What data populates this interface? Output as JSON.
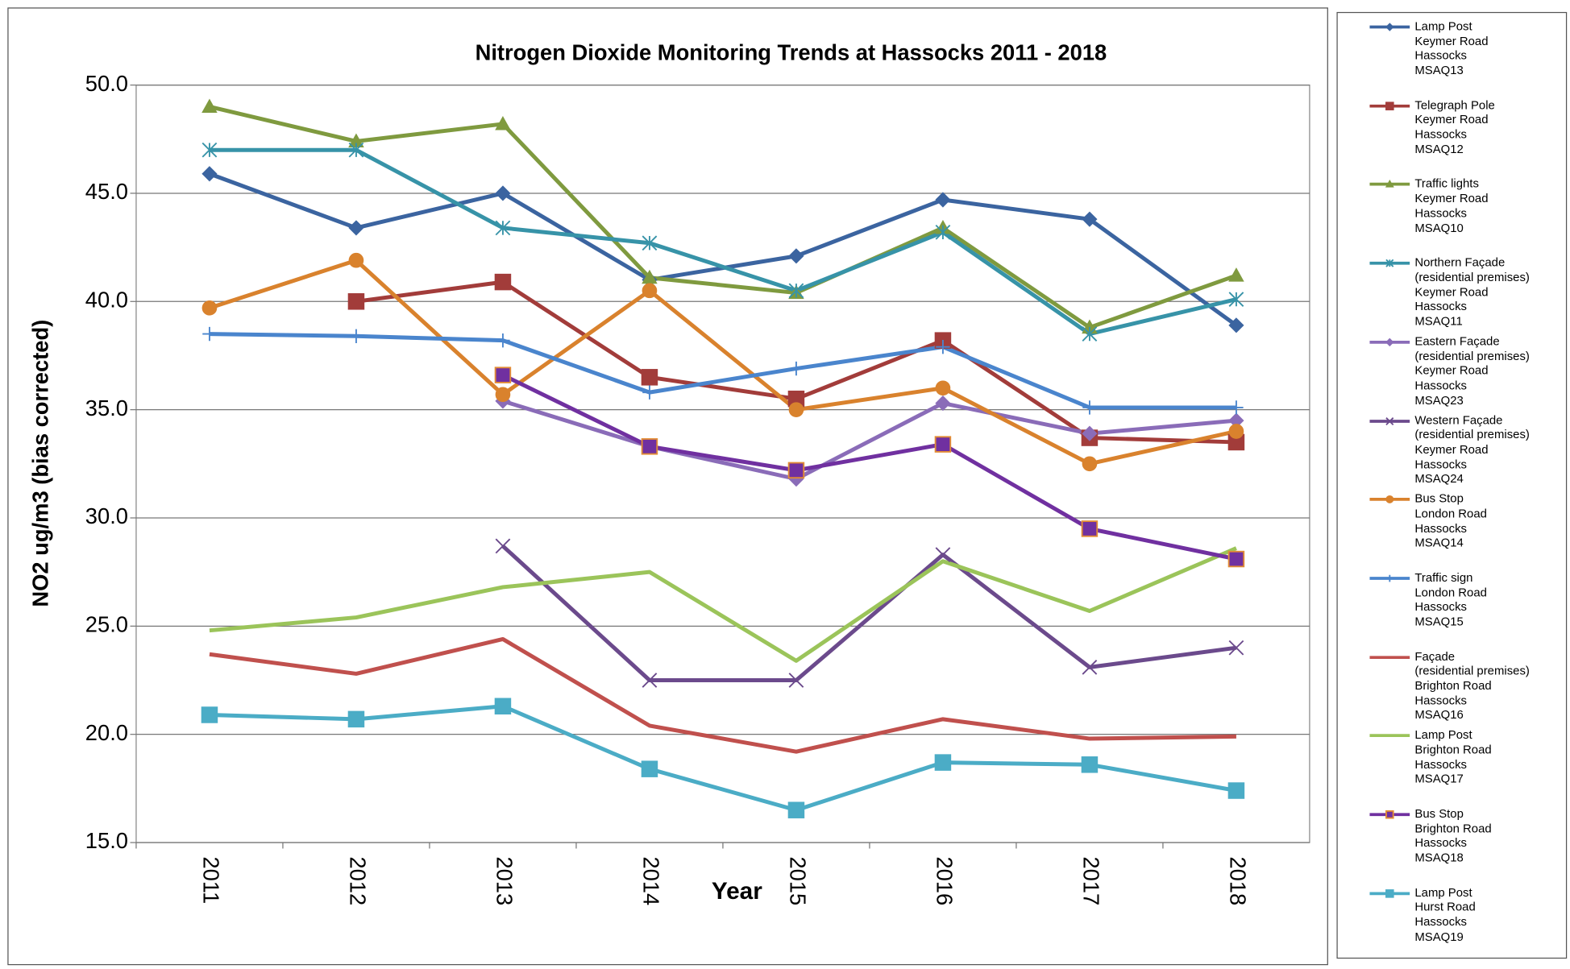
{
  "chart_data": {
    "type": "line",
    "title": "Nitrogen Dioxide Monitoring Trends at Hassocks  2011 - 2018",
    "xlabel": "Year",
    "ylabel": "NO2 ug/m3 (bias corrected)",
    "categories": [
      "2011",
      "2012",
      "2013",
      "2014",
      "2015",
      "2016",
      "2017",
      "2018"
    ],
    "ylim": [
      15,
      50
    ],
    "yticks": [
      {
        "value": 15,
        "label": "15.0"
      },
      {
        "value": 20,
        "label": "20.0"
      },
      {
        "value": 25,
        "label": "25.0"
      },
      {
        "value": 30,
        "label": "30.0"
      },
      {
        "value": 35,
        "label": "35.0"
      },
      {
        "value": 40,
        "label": "40.0"
      },
      {
        "value": 45,
        "label": "45.0"
      },
      {
        "value": 50,
        "label": "50.0"
      }
    ],
    "grid": true,
    "legend": "right",
    "series": [
      {
        "name": "Lamp Post\nKeymer Road\nHassocks\nMSAQ13",
        "color": "#3b64a0",
        "marker": "diamond",
        "values": [
          45.9,
          43.4,
          45.0,
          41.0,
          42.1,
          44.7,
          43.8,
          38.9
        ]
      },
      {
        "name": "Telegraph Pole\nKeymer Road\nHassocks\nMSAQ12",
        "color": "#a23c3a",
        "marker": "square",
        "values": [
          null,
          40.0,
          40.9,
          36.5,
          35.5,
          38.2,
          33.7,
          33.5
        ]
      },
      {
        "name": "Traffic lights\nKeymer Road\nHassocks\nMSAQ10",
        "color": "#7f9a3f",
        "marker": "triangle",
        "values": [
          49.0,
          47.4,
          48.2,
          41.1,
          40.4,
          43.4,
          38.8,
          41.2
        ]
      },
      {
        "name": "Northern Façade\n(residential premises)\nKeymer Road\nHassocks\nMSAQ11",
        "color": "#3793a8",
        "marker": "asterisk",
        "values": [
          47.0,
          47.0,
          43.4,
          42.7,
          40.5,
          43.2,
          38.5,
          40.1
        ]
      },
      {
        "name": "Eastern Façade\n(residential premises)\nKeymer Road\nHassocks\nMSAQ23",
        "color": "#8a6cb8",
        "marker": "diamond",
        "values": [
          null,
          null,
          35.4,
          33.3,
          31.8,
          35.3,
          33.9,
          34.5
        ]
      },
      {
        "name": "Western Façade\n(residential premises)\nKeymer Road\nHassocks\nMSAQ24",
        "color": "#6b4a8c",
        "marker": "x",
        "values": [
          null,
          null,
          28.7,
          22.5,
          22.5,
          28.3,
          23.1,
          24.0
        ]
      },
      {
        "name": "Bus Stop\nLondon Road\nHassocks\nMSAQ14",
        "color": "#d9822d",
        "marker": "circle",
        "values": [
          39.7,
          41.9,
          35.7,
          40.5,
          35.0,
          36.0,
          32.5,
          34.0
        ]
      },
      {
        "name": "Traffic sign\nLondon Road\nHassocks\nMSAQ15",
        "color": "#4a85cd",
        "marker": "plus",
        "values": [
          38.5,
          38.4,
          38.2,
          35.8,
          36.9,
          37.9,
          35.1,
          35.1
        ]
      },
      {
        "name": "Façade\n(residential premises)\nBrighton Road\nHassocks\nMSAQ16",
        "color": "#c0504d",
        "marker": "none",
        "values": [
          23.7,
          22.8,
          24.4,
          20.4,
          19.2,
          20.7,
          19.8,
          19.9
        ]
      },
      {
        "name": "Lamp Post\nBrighton Road\nHassocks\nMSAQ17",
        "color": "#9bc45a",
        "marker": "none",
        "values": [
          24.8,
          25.4,
          26.8,
          27.5,
          23.4,
          28.0,
          25.7,
          28.6
        ]
      },
      {
        "name": "Bus Stop\nBrighton Road\nHassocks\nMSAQ18",
        "color": "#7030a0",
        "marker": "square",
        "marker_edge": "#e28c35",
        "values": [
          null,
          null,
          36.6,
          33.3,
          32.2,
          33.4,
          29.5,
          28.1
        ]
      },
      {
        "name": "Lamp Post\nHurst Road\nHassocks\nMSAQ19",
        "color": "#4bacc6",
        "marker": "square",
        "values": [
          20.9,
          20.7,
          21.3,
          18.4,
          16.5,
          18.7,
          18.6,
          17.4
        ]
      }
    ]
  }
}
